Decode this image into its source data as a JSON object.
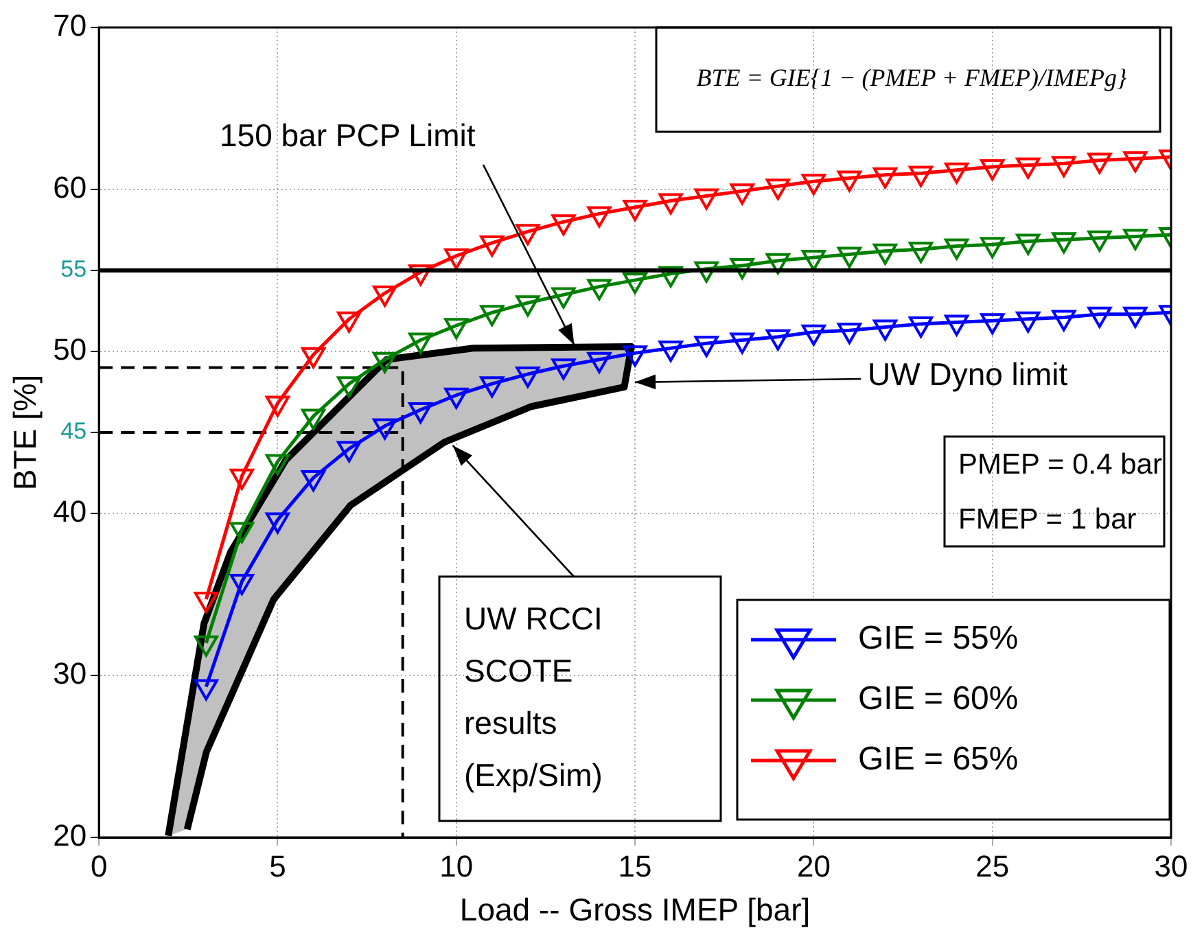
{
  "chart_data": {
    "type": "line",
    "xlabel": "Load -- Gross IMEP [bar]",
    "ylabel": "BTE [%]",
    "xlim": [
      0,
      30
    ],
    "xticks": [
      0,
      5,
      10,
      15,
      20,
      25,
      30
    ],
    "ylim": [
      20,
      70
    ],
    "yticks": [
      20,
      30,
      40,
      {
        "value": 45,
        "label": "45"
      },
      50,
      {
        "value": 55,
        "label": "55"
      },
      60,
      70
    ],
    "grid": true,
    "legend": "bottom right",
    "marker": "triangle",
    "x": [
      3,
      4,
      5,
      6,
      7,
      8,
      9,
      10,
      11,
      12,
      13,
      14,
      15,
      16,
      17,
      18,
      19,
      20,
      21,
      22,
      23,
      24,
      25,
      26,
      27,
      28,
      29,
      30
    ],
    "series": [
      {
        "type": "area",
        "color": "#c0c0c0",
        "marker": "none",
        "x": [
          1.94,
          2.94,
          3.68,
          5.23,
          8.05,
          10.47,
          14.9,
          14.7,
          12.1,
          9.67,
          7.04,
          4.89,
          3.01,
          2.47
        ],
        "values": [
          20.1,
          33.2,
          37.6,
          43.3,
          49.5,
          50.2,
          50.3,
          47.8,
          46.6,
          44.4,
          40.5,
          34.7,
          25.3,
          20.5
        ]
      },
      {
        "name": "GIE = 55%",
        "color": "#0000ff",
        "values": [
          29.3,
          35.8,
          39.6,
          42.2,
          44,
          45.4,
          46.4,
          47.3,
          48,
          48.6,
          49.1,
          49.5,
          49.9,
          50.2,
          50.5,
          50.7,
          50.9,
          51.2,
          51.3,
          51.5,
          51.7,
          51.8,
          51.9,
          52,
          52.1,
          52.3,
          52.3,
          52.4
        ]
      },
      {
        "name": "GIE = 60%",
        "color": "#008000",
        "values": [
          32,
          39,
          43.2,
          46,
          48,
          49.5,
          50.7,
          51.6,
          52.4,
          53,
          53.5,
          54,
          54.4,
          54.8,
          55.1,
          55.3,
          55.6,
          55.8,
          56,
          56.2,
          56.3,
          56.5,
          56.6,
          56.8,
          56.9,
          57,
          57.1,
          57.2
        ]
      },
      {
        "name": "GIE = 65%",
        "color": "#ff0000",
        "values": [
          34.7,
          42.3,
          46.8,
          49.8,
          52,
          53.6,
          54.9,
          55.9,
          56.7,
          57.4,
          58,
          58.5,
          58.9,
          59.3,
          59.6,
          59.9,
          60.2,
          60.5,
          60.7,
          60.9,
          61,
          61.2,
          61.4,
          61.5,
          61.6,
          61.8,
          61.9,
          62
        ]
      },
      {
        "color": "#000000",
        "marker": "none",
        "line_style": "dashed",
        "x": [
          0,
          8.5,
          8.5
        ],
        "values": [
          49,
          49,
          20
        ]
      },
      {
        "color": "#000000",
        "marker": "none",
        "line_style": "dashed",
        "x": [
          0,
          8.5
        ],
        "values": [
          45,
          45
        ]
      }
    ],
    "ref_lines": [
      {
        "axis": "y",
        "value": 55,
        "color": "#000000"
      }
    ],
    "annotations": [
      {
        "text": "150 bar PCP Limit",
        "x": 13.3,
        "y": 50.4
      },
      {
        "text": "UW Dyno limit",
        "x": 15,
        "y": 48.1
      },
      {
        "text": "UW RCCI SCOTE results (Exp/Sim)",
        "x": 9.9,
        "y": 44.2
      },
      "PMEP = 0.4 bar\nFMEP = 1 bar",
      "BTE = GIE{1 − (PMEP + FMEP)/IMEPg}"
    ]
  }
}
